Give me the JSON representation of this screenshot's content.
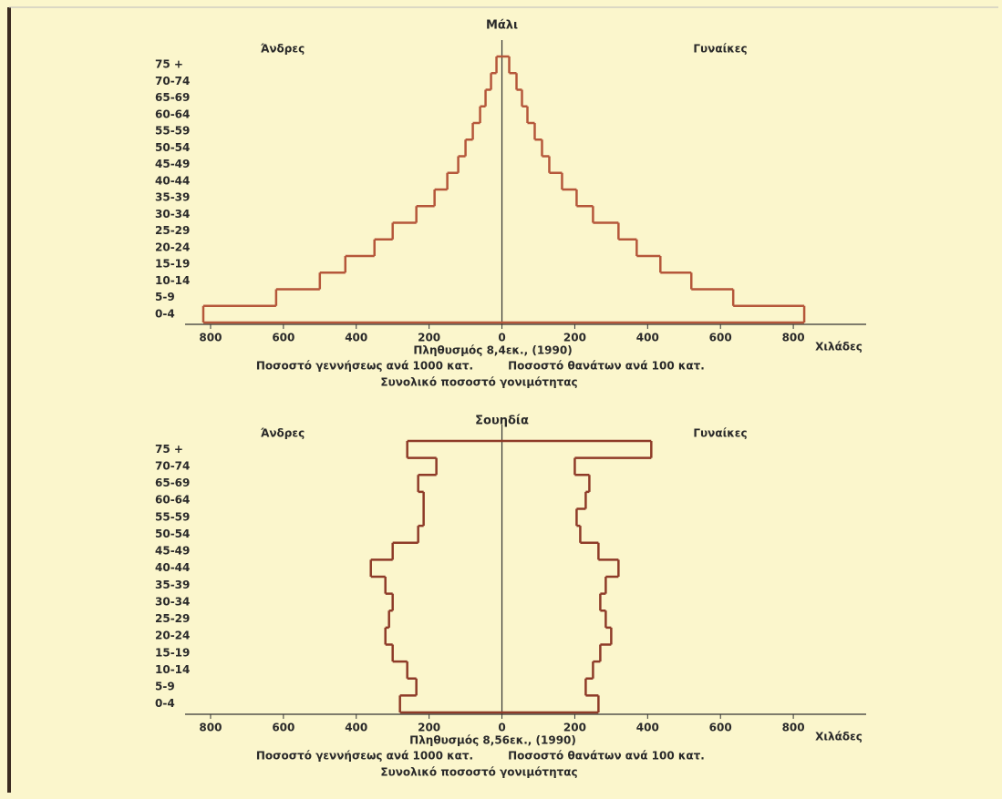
{
  "chart_data": [
    {
      "type": "pyramid",
      "title": "Μάλι",
      "left_label": "Άνδρες",
      "right_label": "Γυναίκες",
      "xlabel": "Χιλάδες",
      "notes": [
        "Πληθυσμός 8,4εκ., (1990)",
        "Ποσοστό γεννήσεως ανά 1000 κατ.",
        "Ποσοστό θανάτων ανά 100 κατ.",
        "Συνολικό ποσοστό γονιμότητας"
      ],
      "categories": [
        "0-4",
        "5-9",
        "10-14",
        "15-19",
        "20-24",
        "25-29",
        "30-34",
        "35-39",
        "40-44",
        "45-49",
        "50-54",
        "55-59",
        "60-64",
        "65-69",
        "70-74",
        "75 +"
      ],
      "series": [
        {
          "name": "Άνδρες",
          "side": "left",
          "color": "#b5573a",
          "values": [
            820,
            620,
            500,
            430,
            350,
            300,
            235,
            185,
            150,
            120,
            100,
            80,
            60,
            45,
            30,
            15
          ]
        },
        {
          "name": "Γυναίκες",
          "side": "right",
          "color": "#b5573a",
          "values": [
            830,
            635,
            520,
            435,
            370,
            320,
            250,
            205,
            165,
            130,
            110,
            90,
            70,
            55,
            40,
            20
          ]
        }
      ],
      "xlim": [
        -870,
        1000
      ],
      "xticks": [
        {
          "value": -800,
          "label": "800"
        },
        {
          "value": -600,
          "label": "600"
        },
        {
          "value": -400,
          "label": "400"
        },
        {
          "value": -200,
          "label": "200"
        },
        0,
        200,
        400,
        600,
        800
      ]
    },
    {
      "type": "pyramid",
      "title": "Σουηδία",
      "left_label": "Άνδρες",
      "right_label": "Γυναίκες",
      "xlabel": "Χιλάδες",
      "notes": [
        "Πληθυσμός 8,56εκ., (1990)",
        "Ποσοστό γεννήσεως ανά 1000 κατ.",
        "Ποσοστό θανάτων ανά 100 κατ.",
        "Συνολικό ποσοστό γονιμότητας"
      ],
      "categories": [
        "0-4",
        "5-9",
        "10-14",
        "15-19",
        "20-24",
        "25-29",
        "30-34",
        "35-39",
        "40-44",
        "45-49",
        "50-54",
        "55-59",
        "60-64",
        "65-69",
        "70-74",
        "75 +"
      ],
      "series": [
        {
          "name": "Άνδρες",
          "side": "left",
          "color": "#8e3b28",
          "values": [
            280,
            235,
            260,
            300,
            320,
            310,
            300,
            320,
            360,
            300,
            230,
            215,
            215,
            230,
            180,
            260
          ]
        },
        {
          "name": "Γυναίκες",
          "side": "right",
          "color": "#8e3b28",
          "values": [
            265,
            230,
            250,
            270,
            300,
            285,
            270,
            285,
            320,
            265,
            215,
            205,
            230,
            240,
            200,
            410
          ]
        }
      ],
      "xlim": [
        -870,
        1000
      ],
      "xticks": [
        {
          "value": -800,
          "label": "800"
        },
        {
          "value": -600,
          "label": "600"
        },
        {
          "value": -400,
          "label": "400"
        },
        {
          "value": -200,
          "label": "200"
        },
        0,
        200,
        400,
        600,
        800
      ]
    }
  ]
}
